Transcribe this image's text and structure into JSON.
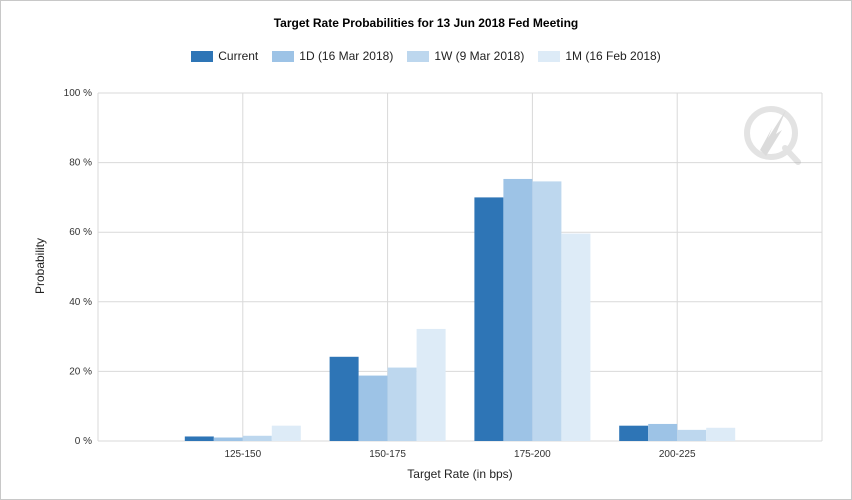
{
  "chart_data": {
    "type": "bar",
    "title": "Target Rate Probabilities for 13 Jun 2018 Fed Meeting",
    "xlabel": "Target Rate (in bps)",
    "ylabel": "Probability",
    "categories": [
      "125-150",
      "150-175",
      "175-200",
      "200-225"
    ],
    "yticks": [
      "0 %",
      "20 %",
      "40 %",
      "60 %",
      "80 %",
      "100 %"
    ],
    "ylim": [
      0,
      100
    ],
    "grid": true,
    "legend_position": "top-center",
    "series": [
      {
        "name": "Current",
        "color": "#2e75b6",
        "values": [
          1.3,
          24.2,
          70.0,
          4.4
        ]
      },
      {
        "name": "1D (16 Mar 2018)",
        "color": "#9dc3e6",
        "values": [
          1.0,
          18.8,
          75.3,
          4.9
        ]
      },
      {
        "name": "1W (9 Mar 2018)",
        "color": "#bdd7ee",
        "values": [
          1.5,
          21.1,
          74.6,
          3.2
        ]
      },
      {
        "name": "1M (16 Feb 2018)",
        "color": "#ddebf7",
        "values": [
          4.4,
          32.2,
          59.6,
          3.8
        ]
      }
    ]
  }
}
